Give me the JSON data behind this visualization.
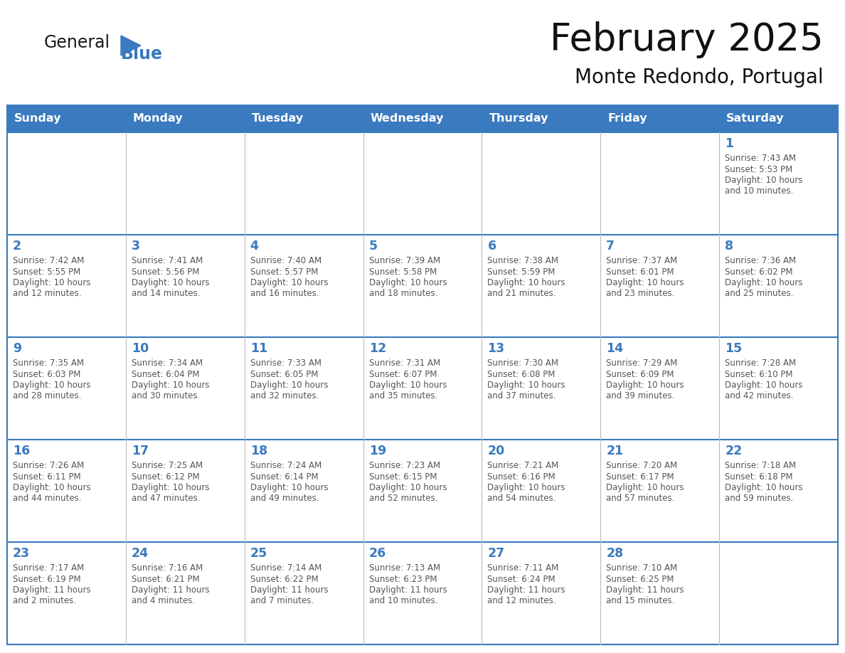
{
  "title": "February 2025",
  "subtitle": "Monte Redondo, Portugal",
  "header_color": "#3a7abf",
  "header_text_color": "#ffffff",
  "cell_bg_color": "#ffffff",
  "grid_line_color": "#3a7abf",
  "day_number_color": "#3a7abf",
  "info_text_color": "#555555",
  "days_of_week": [
    "Sunday",
    "Monday",
    "Tuesday",
    "Wednesday",
    "Thursday",
    "Friday",
    "Saturday"
  ],
  "calendar_data": [
    [
      null,
      null,
      null,
      null,
      null,
      null,
      {
        "day": 1,
        "sunrise": "7:43 AM",
        "sunset": "5:53 PM",
        "daylight": "10 hours\nand 10 minutes."
      }
    ],
    [
      {
        "day": 2,
        "sunrise": "7:42 AM",
        "sunset": "5:55 PM",
        "daylight": "10 hours\nand 12 minutes."
      },
      {
        "day": 3,
        "sunrise": "7:41 AM",
        "sunset": "5:56 PM",
        "daylight": "10 hours\nand 14 minutes."
      },
      {
        "day": 4,
        "sunrise": "7:40 AM",
        "sunset": "5:57 PM",
        "daylight": "10 hours\nand 16 minutes."
      },
      {
        "day": 5,
        "sunrise": "7:39 AM",
        "sunset": "5:58 PM",
        "daylight": "10 hours\nand 18 minutes."
      },
      {
        "day": 6,
        "sunrise": "7:38 AM",
        "sunset": "5:59 PM",
        "daylight": "10 hours\nand 21 minutes."
      },
      {
        "day": 7,
        "sunrise": "7:37 AM",
        "sunset": "6:01 PM",
        "daylight": "10 hours\nand 23 minutes."
      },
      {
        "day": 8,
        "sunrise": "7:36 AM",
        "sunset": "6:02 PM",
        "daylight": "10 hours\nand 25 minutes."
      }
    ],
    [
      {
        "day": 9,
        "sunrise": "7:35 AM",
        "sunset": "6:03 PM",
        "daylight": "10 hours\nand 28 minutes."
      },
      {
        "day": 10,
        "sunrise": "7:34 AM",
        "sunset": "6:04 PM",
        "daylight": "10 hours\nand 30 minutes."
      },
      {
        "day": 11,
        "sunrise": "7:33 AM",
        "sunset": "6:05 PM",
        "daylight": "10 hours\nand 32 minutes."
      },
      {
        "day": 12,
        "sunrise": "7:31 AM",
        "sunset": "6:07 PM",
        "daylight": "10 hours\nand 35 minutes."
      },
      {
        "day": 13,
        "sunrise": "7:30 AM",
        "sunset": "6:08 PM",
        "daylight": "10 hours\nand 37 minutes."
      },
      {
        "day": 14,
        "sunrise": "7:29 AM",
        "sunset": "6:09 PM",
        "daylight": "10 hours\nand 39 minutes."
      },
      {
        "day": 15,
        "sunrise": "7:28 AM",
        "sunset": "6:10 PM",
        "daylight": "10 hours\nand 42 minutes."
      }
    ],
    [
      {
        "day": 16,
        "sunrise": "7:26 AM",
        "sunset": "6:11 PM",
        "daylight": "10 hours\nand 44 minutes."
      },
      {
        "day": 17,
        "sunrise": "7:25 AM",
        "sunset": "6:12 PM",
        "daylight": "10 hours\nand 47 minutes."
      },
      {
        "day": 18,
        "sunrise": "7:24 AM",
        "sunset": "6:14 PM",
        "daylight": "10 hours\nand 49 minutes."
      },
      {
        "day": 19,
        "sunrise": "7:23 AM",
        "sunset": "6:15 PM",
        "daylight": "10 hours\nand 52 minutes."
      },
      {
        "day": 20,
        "sunrise": "7:21 AM",
        "sunset": "6:16 PM",
        "daylight": "10 hours\nand 54 minutes."
      },
      {
        "day": 21,
        "sunrise": "7:20 AM",
        "sunset": "6:17 PM",
        "daylight": "10 hours\nand 57 minutes."
      },
      {
        "day": 22,
        "sunrise": "7:18 AM",
        "sunset": "6:18 PM",
        "daylight": "10 hours\nand 59 minutes."
      }
    ],
    [
      {
        "day": 23,
        "sunrise": "7:17 AM",
        "sunset": "6:19 PM",
        "daylight": "11 hours\nand 2 minutes."
      },
      {
        "day": 24,
        "sunrise": "7:16 AM",
        "sunset": "6:21 PM",
        "daylight": "11 hours\nand 4 minutes."
      },
      {
        "day": 25,
        "sunrise": "7:14 AM",
        "sunset": "6:22 PM",
        "daylight": "11 hours\nand 7 minutes."
      },
      {
        "day": 26,
        "sunrise": "7:13 AM",
        "sunset": "6:23 PM",
        "daylight": "11 hours\nand 10 minutes."
      },
      {
        "day": 27,
        "sunrise": "7:11 AM",
        "sunset": "6:24 PM",
        "daylight": "11 hours\nand 12 minutes."
      },
      {
        "day": 28,
        "sunrise": "7:10 AM",
        "sunset": "6:25 PM",
        "daylight": "11 hours\nand 15 minutes."
      },
      null
    ]
  ],
  "figwidth": 11.88,
  "figheight": 9.18,
  "dpi": 100
}
